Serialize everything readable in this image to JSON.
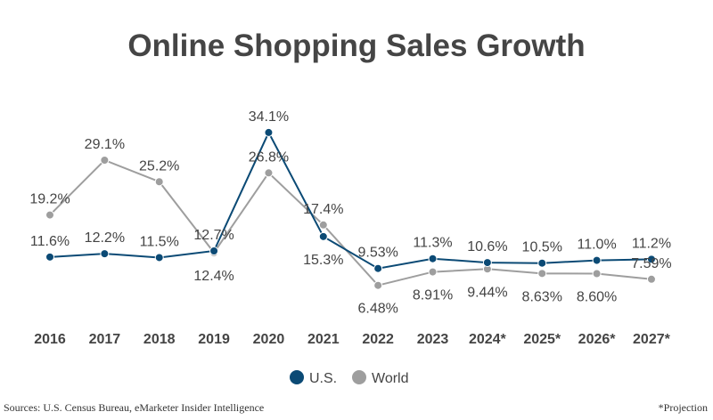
{
  "chart_data": {
    "type": "line",
    "title": "Online Shopping Sales Growth",
    "categories": [
      "2016",
      "2017",
      "2018",
      "2019",
      "2020",
      "2021",
      "2022",
      "2023",
      "2024*",
      "2025*",
      "2026*",
      "2027*"
    ],
    "series": [
      {
        "name": "U.S.",
        "color": "#0b4a75",
        "values": [
          11.6,
          12.2,
          11.5,
          12.7,
          34.1,
          15.3,
          9.53,
          11.3,
          10.6,
          10.5,
          11.0,
          11.2
        ],
        "labels": [
          "11.6%",
          "12.2%",
          "11.5%",
          "12.7%",
          "34.1%",
          "15.3%",
          "9.53%",
          "11.3%",
          "10.6%",
          "10.5%",
          "11.0%",
          "11.2%"
        ]
      },
      {
        "name": "World",
        "color": "#9e9e9e",
        "values": [
          19.2,
          29.1,
          25.2,
          12.4,
          26.8,
          17.4,
          6.48,
          8.91,
          9.44,
          8.63,
          8.6,
          7.59
        ],
        "labels": [
          "19.2%",
          "29.1%",
          "25.2%",
          "12.4%",
          "26.8%",
          "17.4%",
          "6.48%",
          "8.91%",
          "9.44%",
          "8.63%",
          "8.60%",
          "7.59%"
        ]
      }
    ],
    "grid": false,
    "legend": "bottom-center"
  },
  "sources": "Sources: U.S. Census Bureau, eMarketer Insider Intelligence",
  "note": "*Projection"
}
